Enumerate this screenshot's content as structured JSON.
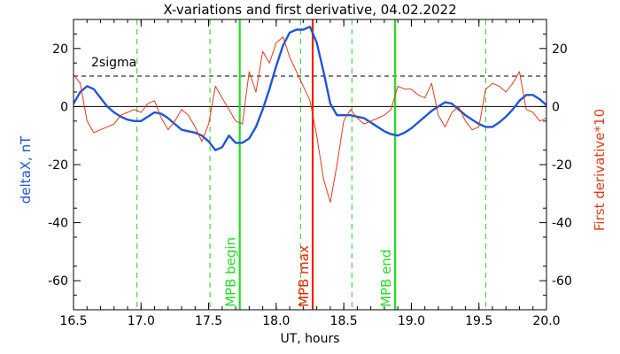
{
  "chart_data": {
    "type": "line",
    "title": "X-variations and first derivative, 04.02.2022",
    "xlabel": "UT, hours",
    "ylabel_left": "deltaX, nT",
    "ylabel_right": "First derivative*10",
    "xlim": [
      16.5,
      20.0
    ],
    "ylim": [
      -70,
      30
    ],
    "x_ticks": [
      16.5,
      17.0,
      17.5,
      18.0,
      18.5,
      19.0,
      19.5,
      20.0
    ],
    "x_tick_labels": [
      "16.5",
      "17.0",
      "17.5",
      "18.0",
      "18.5",
      "19.0",
      "19.5",
      "20.0"
    ],
    "y_ticks": [
      20,
      0,
      -20,
      -40,
      -60
    ],
    "y_tick_labels": [
      "20",
      "0",
      "-20",
      "-40",
      "-60"
    ],
    "colors": {
      "deltaX": "#1f55d6",
      "derivative": "#e03a1a",
      "mpb_bounds": "#22dd22",
      "mpb_max": "#ee2200",
      "dashed_green": "#22cc22",
      "sigma": "#000000",
      "left_label": "#1f55d6",
      "right_label": "#e03a1a"
    },
    "sigma_level": 10.5,
    "sigma_label": "2sigma",
    "zero_line": 0,
    "dashed_verticals": [
      16.97,
      17.51,
      18.18,
      18.56,
      19.55
    ],
    "markers": [
      {
        "x": 17.73,
        "label": "MPB begin",
        "kind": "mpb_bounds"
      },
      {
        "x": 18.27,
        "label": "MPB max",
        "kind": "mpb_max"
      },
      {
        "x": 18.88,
        "label": "MPB end",
        "kind": "mpb_bounds"
      }
    ],
    "series": [
      {
        "key": "deltaX",
        "x": [
          16.5,
          16.55,
          16.6,
          16.65,
          16.7,
          16.75,
          16.8,
          16.85,
          16.9,
          16.95,
          17.0,
          17.05,
          17.1,
          17.15,
          17.2,
          17.25,
          17.3,
          17.35,
          17.4,
          17.45,
          17.5,
          17.55,
          17.6,
          17.65,
          17.7,
          17.75,
          17.8,
          17.85,
          17.9,
          17.95,
          18.0,
          18.05,
          18.1,
          18.15,
          18.2,
          18.25,
          18.3,
          18.35,
          18.4,
          18.45,
          18.5,
          18.55,
          18.6,
          18.65,
          18.7,
          18.75,
          18.8,
          18.85,
          18.9,
          18.95,
          19.0,
          19.05,
          19.1,
          19.15,
          19.2,
          19.25,
          19.3,
          19.35,
          19.4,
          19.45,
          19.5,
          19.55,
          19.6,
          19.65,
          19.7,
          19.75,
          19.8,
          19.85,
          19.9,
          19.95,
          20.0
        ],
        "y": [
          1,
          5,
          7,
          6,
          3,
          0,
          -2,
          -3.5,
          -4.5,
          -5,
          -5,
          -3.5,
          -2,
          -2.5,
          -4,
          -6,
          -8,
          -8.5,
          -9,
          -10,
          -12,
          -15,
          -14,
          -10,
          -12.5,
          -12.5,
          -11,
          -7,
          -1,
          6,
          14,
          21,
          25.5,
          26.5,
          26.5,
          27.5,
          22,
          12,
          1,
          -3,
          -3,
          -3,
          -3.5,
          -4,
          -5.5,
          -7,
          -8.5,
          -9.5,
          -10,
          -9,
          -7.5,
          -5.5,
          -3.5,
          -1.5,
          0,
          1.5,
          1,
          -1,
          -3,
          -4.5,
          -6,
          -7,
          -7,
          -5.5,
          -3.5,
          -1,
          2,
          4,
          4,
          2.5,
          0.5
        ]
      },
      {
        "key": "derivative",
        "x": [
          16.5,
          16.55,
          16.6,
          16.65,
          16.7,
          16.75,
          16.8,
          16.85,
          16.9,
          16.95,
          17.0,
          17.05,
          17.1,
          17.15,
          17.2,
          17.25,
          17.3,
          17.35,
          17.4,
          17.45,
          17.5,
          17.55,
          17.6,
          17.65,
          17.7,
          17.75,
          17.8,
          17.85,
          17.9,
          17.95,
          18.0,
          18.05,
          18.1,
          18.15,
          18.2,
          18.25,
          18.3,
          18.35,
          18.4,
          18.45,
          18.5,
          18.55,
          18.6,
          18.65,
          18.7,
          18.75,
          18.8,
          18.85,
          18.9,
          18.95,
          19.0,
          19.05,
          19.1,
          19.15,
          19.2,
          19.25,
          19.3,
          19.35,
          19.4,
          19.45,
          19.5,
          19.55,
          19.6,
          19.65,
          19.7,
          19.75,
          19.8,
          19.85,
          19.9,
          19.95,
          20.0
        ],
        "y": [
          11,
          8,
          -5,
          -9,
          -8,
          -7,
          -6,
          -3,
          -2,
          -1,
          -2,
          1,
          2,
          -4,
          -8,
          -5,
          -1,
          -3,
          -7,
          -12,
          -6,
          7,
          3,
          -1,
          -5,
          -6,
          12,
          5,
          19,
          15,
          22,
          24,
          17,
          12,
          7,
          2,
          -10,
          -25,
          -33,
          -20,
          -5,
          -1,
          -4,
          -6,
          -5,
          -4,
          -3,
          -1,
          7,
          6,
          6,
          4,
          3,
          8,
          -3,
          -7,
          -2,
          0,
          -5,
          -8,
          -7,
          6,
          8,
          7,
          5,
          8,
          12,
          -1,
          -2,
          -5,
          -4
        ]
      }
    ]
  }
}
